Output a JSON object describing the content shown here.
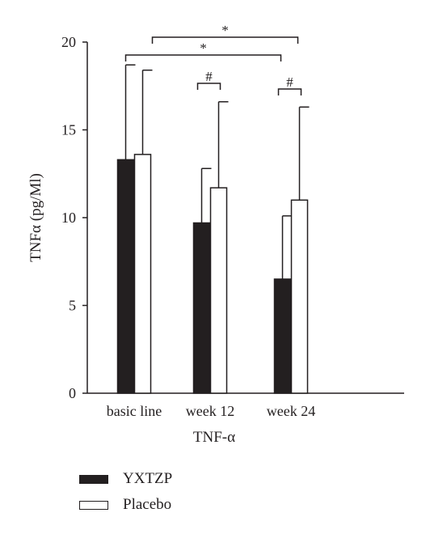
{
  "chart_data": {
    "type": "bar",
    "title": "",
    "xlabel": "TNF-α",
    "ylabel": "TNFα (pg/Ml)",
    "ylim": [
      0,
      20
    ],
    "yticks": [
      0,
      5,
      10,
      15,
      20
    ],
    "categories": [
      "basic line",
      "week 12",
      "week 24"
    ],
    "series": [
      {
        "name": "YXTZP",
        "color": "#231f20",
        "values": [
          13.3,
          9.7,
          6.5
        ],
        "errors": [
          5.4,
          3.1,
          3.6
        ]
      },
      {
        "name": "Placebo",
        "color": "#ffffff",
        "values": [
          13.6,
          11.7,
          11.0
        ],
        "errors": [
          4.8,
          4.9,
          5.3
        ]
      }
    ],
    "legend_position": "bottom-left",
    "grid": false,
    "annotations": [
      {
        "label": "*",
        "from": "basic line",
        "to": "week 24"
      },
      {
        "label": "*",
        "from": "basic line",
        "to": "week 24"
      },
      {
        "label": "#",
        "category": "week 12"
      },
      {
        "label": "#",
        "category": "week 24"
      }
    ]
  }
}
